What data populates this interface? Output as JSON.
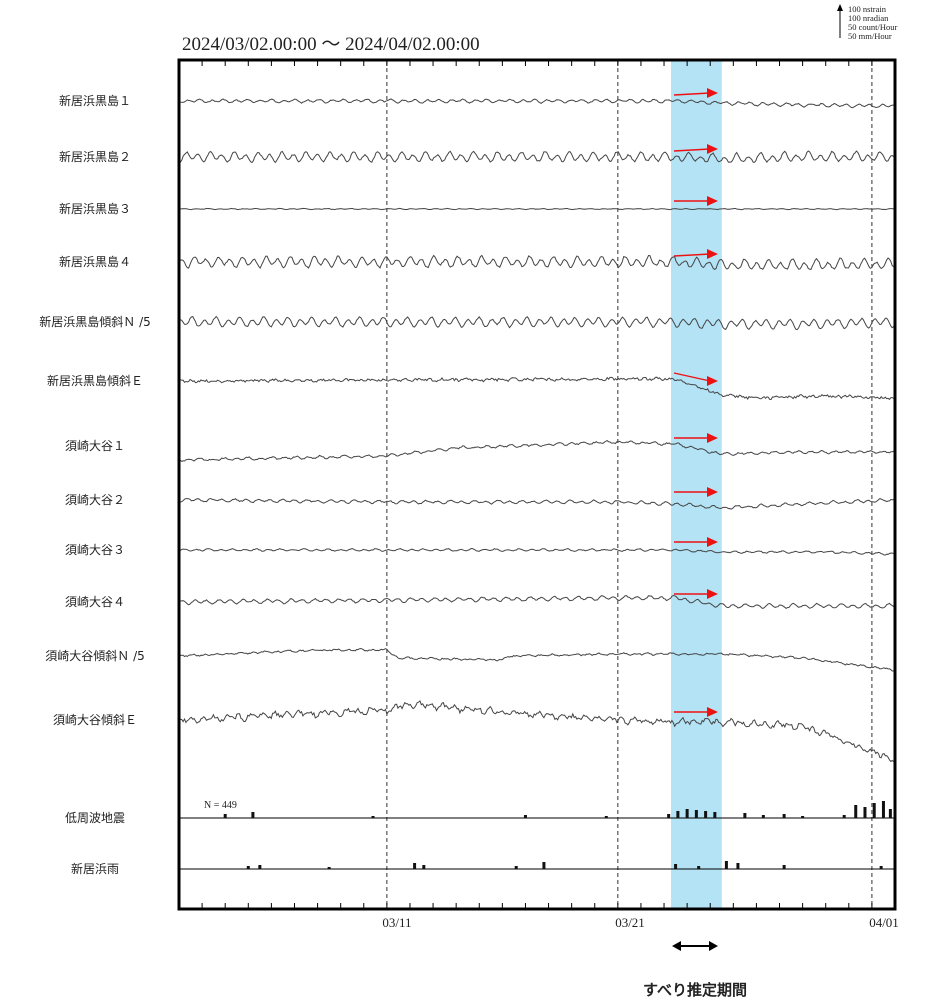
{
  "chart_data": {
    "type": "line",
    "title": "2024/03/02.00:00 〜 2024/04/02.00:00",
    "x_range": [
      "2024/03/02.00:00",
      "2024/04/02.00:00"
    ],
    "x_tick_labels": [
      {
        "label": "03/11",
        "day": 9
      },
      {
        "label": "03/21",
        "day": 19
      },
      {
        "label": "04/01",
        "day": 30
      }
    ],
    "scale_legend": [
      "100 nstrain",
      "100 nradian",
      "50 count/Hour",
      "50 mm/Hour"
    ],
    "slip_period": {
      "start_day": 21.3,
      "end_day": 23.5,
      "label": "すべり推定期間",
      "color": "#b3e3f5"
    },
    "arrow_color": "#ee1111",
    "series": [
      {
        "name": "新居浜黒島１",
        "kind": "trace",
        "shape": "tilt",
        "wiggle": 1.6,
        "noise": 0.5,
        "slope": 3,
        "points": [
          [
            0,
            0
          ],
          [
            10,
            0
          ],
          [
            19,
            0
          ],
          [
            21.5,
            0
          ],
          [
            23.5,
            2
          ],
          [
            27,
            4
          ],
          [
            31,
            5
          ]
        ],
        "arrow": true,
        "arrow_dy": -8
      },
      {
        "name": "新居浜黒島２",
        "kind": "trace",
        "wiggle": 4.5,
        "noise": 0.8,
        "points": [
          [
            0,
            0
          ],
          [
            19,
            0
          ],
          [
            21.5,
            0
          ],
          [
            23.5,
            2
          ],
          [
            27,
            0
          ],
          [
            31,
            0
          ]
        ],
        "arrow": true,
        "arrow_dy": -10
      },
      {
        "name": "新居浜黒島３",
        "kind": "trace",
        "wiggle": 0.4,
        "noise": 0.2,
        "points": [
          [
            0,
            0
          ],
          [
            31,
            0
          ]
        ],
        "arrow": true,
        "arrow_dy": -4
      },
      {
        "name": "新居浜黒島４",
        "kind": "trace",
        "wiggle": 5,
        "noise": 0.9,
        "points": [
          [
            0,
            0
          ],
          [
            19,
            0
          ],
          [
            21.5,
            0
          ],
          [
            23.5,
            3
          ],
          [
            27,
            3
          ],
          [
            31,
            2
          ]
        ],
        "arrow": true,
        "arrow_dy": -10
      },
      {
        "name": "新居浜黒島傾斜Ｎ /5",
        "kind": "trace",
        "wiggle": 4.5,
        "noise": 0.6,
        "points": [
          [
            0,
            0
          ],
          [
            19,
            0
          ],
          [
            21.5,
            0
          ],
          [
            23.5,
            2
          ],
          [
            27,
            2
          ],
          [
            31,
            0
          ]
        ],
        "arrow": false,
        "arrow_dy": 0
      },
      {
        "name": "新居浜黒島傾斜Ｅ",
        "kind": "trace",
        "wiggle": 0.8,
        "noise": 1.2,
        "points": [
          [
            0,
            0
          ],
          [
            10,
            -1
          ],
          [
            19,
            -2
          ],
          [
            21.5,
            -2
          ],
          [
            23.5,
            14
          ],
          [
            25,
            17
          ],
          [
            28,
            15
          ],
          [
            31,
            17
          ]
        ],
        "arrow": true,
        "arrow_dy": -6
      },
      {
        "name": "須崎大谷１",
        "kind": "trace",
        "wiggle": 1.2,
        "noise": 0.6,
        "points": [
          [
            0,
            14
          ],
          [
            9,
            10
          ],
          [
            12,
            2
          ],
          [
            19,
            -4
          ],
          [
            21.5,
            -2
          ],
          [
            23.5,
            8
          ],
          [
            27,
            6
          ],
          [
            31,
            6
          ]
        ],
        "arrow": true,
        "arrow_dy": -8
      },
      {
        "name": "須崎大谷２",
        "kind": "trace",
        "wiggle": 1.5,
        "noise": 0.5,
        "points": [
          [
            0,
            0
          ],
          [
            10,
            2
          ],
          [
            19,
            2
          ],
          [
            21.5,
            4
          ],
          [
            23.5,
            8
          ],
          [
            27,
            4
          ],
          [
            31,
            0
          ]
        ],
        "arrow": true,
        "arrow_dy": -12
      },
      {
        "name": "須崎大谷３",
        "kind": "trace",
        "wiggle": 1,
        "noise": 0.4,
        "points": [
          [
            0,
            0
          ],
          [
            19,
            0
          ],
          [
            21.5,
            0
          ],
          [
            23.5,
            2
          ],
          [
            28,
            2
          ],
          [
            31,
            4
          ]
        ],
        "arrow": true,
        "arrow_dy": -10
      },
      {
        "name": "須崎大谷４",
        "kind": "trace",
        "wiggle": 2,
        "noise": 0.5,
        "points": [
          [
            0,
            0
          ],
          [
            10,
            -2
          ],
          [
            19,
            -4
          ],
          [
            21.5,
            -4
          ],
          [
            23.5,
            4
          ],
          [
            27,
            4
          ],
          [
            31,
            4
          ]
        ],
        "arrow": true,
        "arrow_dy": -10
      },
      {
        "name": "須崎大谷傾斜Ｎ /5",
        "kind": "trace",
        "wiggle": 0.8,
        "noise": 0.6,
        "points": [
          [
            0,
            0
          ],
          [
            6,
            -6
          ],
          [
            9,
            -6
          ],
          [
            9.5,
            2
          ],
          [
            14,
            4
          ],
          [
            14.3,
            0
          ],
          [
            19,
            -2
          ],
          [
            21.5,
            -2
          ],
          [
            23.5,
            -2
          ],
          [
            27,
            2
          ],
          [
            31,
            14
          ]
        ],
        "arrow": false,
        "arrow_dy": 0
      },
      {
        "name": "須崎大谷傾斜Ｅ",
        "kind": "trace",
        "wiggle": 2.5,
        "noise": 2,
        "points": [
          [
            0,
            0
          ],
          [
            9,
            -10
          ],
          [
            10,
            -16
          ],
          [
            15,
            -6
          ],
          [
            19,
            0
          ],
          [
            21.5,
            2
          ],
          [
            23.5,
            2
          ],
          [
            27,
            6
          ],
          [
            31,
            40
          ]
        ],
        "arrow": true,
        "arrow_dy": -12
      },
      {
        "name": "低周波地震",
        "kind": "bars",
        "count_label": "N =   449",
        "bars": [
          [
            2,
            4
          ],
          [
            3.2,
            6
          ],
          [
            8.4,
            2
          ],
          [
            15,
            3
          ],
          [
            18.5,
            2
          ],
          [
            21.2,
            4
          ],
          [
            21.6,
            7
          ],
          [
            22,
            9
          ],
          [
            22.4,
            8
          ],
          [
            22.8,
            7
          ],
          [
            23.2,
            6
          ],
          [
            24.5,
            5
          ],
          [
            25.3,
            3
          ],
          [
            26.2,
            4
          ],
          [
            27,
            2
          ],
          [
            28.8,
            3
          ],
          [
            29.3,
            13
          ],
          [
            29.7,
            11
          ],
          [
            30.1,
            15
          ],
          [
            30.5,
            17
          ],
          [
            30.8,
            9
          ]
        ]
      },
      {
        "name": "新居浜雨",
        "kind": "bars",
        "bars": [
          [
            3,
            3
          ],
          [
            3.5,
            4
          ],
          [
            6.5,
            2
          ],
          [
            10.2,
            6
          ],
          [
            10.6,
            4
          ],
          [
            14.6,
            3
          ],
          [
            15.8,
            7
          ],
          [
            21.5,
            5
          ],
          [
            22.5,
            3
          ],
          [
            23.7,
            8
          ],
          [
            24.2,
            6
          ],
          [
            26.2,
            4
          ],
          [
            30.4,
            3
          ]
        ]
      }
    ]
  }
}
